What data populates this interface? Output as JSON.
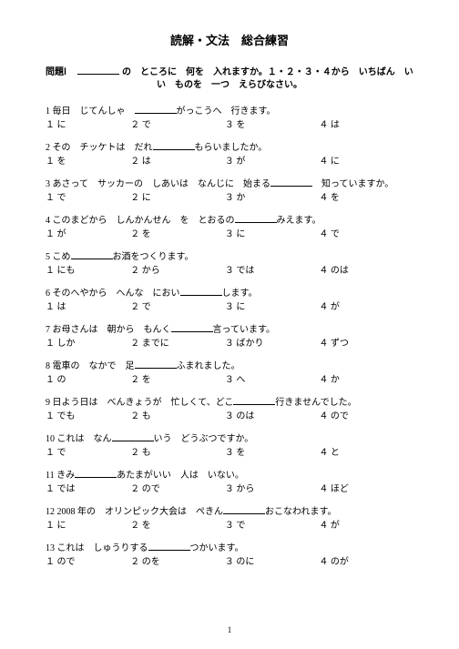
{
  "title": "読解・文法　総合練習",
  "instruction": {
    "label": "問題Ⅰ",
    "line1_a": "の　ところに　何を　入れますか。１・２・３・４から　いちばん　い",
    "line2": "い　ものを　一つ　えらびなさい。"
  },
  "questions": [
    {
      "n": "1",
      "pre": "毎日　じてんしゃ　",
      "post": "がっこうへ　行きます。",
      "opts": [
        "１ に",
        "２ で",
        "３ を",
        "４ は"
      ]
    },
    {
      "n": "2",
      "pre": "その　チッケトは　だれ",
      "post": "もらいましたか。",
      "opts": [
        "１ を",
        "２ は",
        "３ が",
        "４ に"
      ]
    },
    {
      "n": "3",
      "pre": "あさって　サッカーの　しあいは　なんじに　始まる",
      "post": "　知っていますか。",
      "opts": [
        "１ で",
        "２ に",
        "３ か",
        "４ を"
      ]
    },
    {
      "n": "4",
      "pre": "このまどから　しんかんせん　を　とおるの",
      "post": "みえます。",
      "opts": [
        "１ が",
        "２ を",
        "３ に",
        "４ で"
      ]
    },
    {
      "n": "5",
      "pre": "こめ",
      "post": "お酒をつくります。",
      "opts": [
        "１ にも",
        "２ から",
        "３ では",
        "４ のは"
      ]
    },
    {
      "n": "6",
      "pre": "そのへやから　へんな　におい",
      "post": "します。",
      "opts": [
        "１ は",
        "２ で",
        "３ に",
        "４ が"
      ]
    },
    {
      "n": "7",
      "pre": "お母さんは　朝から　もんく",
      "post": "言っています。",
      "opts": [
        "１ しか",
        "２ までに",
        "３ ばかり",
        "４ ずつ"
      ]
    },
    {
      "n": "8",
      "pre": "電車の　なかで　足",
      "post": "ふまれました。",
      "opts": [
        "１ の",
        "２ を",
        "３ へ",
        "４ か"
      ]
    },
    {
      "n": "9",
      "pre": "日よう日は　べんきょうが　忙しくて、どこ",
      "post": "行きませんでした。",
      "opts": [
        "１ でも",
        "２ も",
        "３ のは",
        "４ ので"
      ]
    },
    {
      "n": "10",
      "pre": "これは　なん",
      "post": "いう　どうぶつですか。",
      "opts": [
        "１ で",
        "２ も",
        "３ を",
        "４ と"
      ]
    },
    {
      "n": "11",
      "pre": "きみ",
      "post": "あたまがいい　人は　いない。",
      "opts": [
        "１ では",
        "２ ので",
        "３ から",
        "４ ほど"
      ]
    },
    {
      "n": "12",
      "pre": "2008 年の　オリンピック大会は　ぺきん",
      "post": "おこなわれます。",
      "opts": [
        "１ に",
        "２ を",
        "３ で",
        "４ が"
      ]
    },
    {
      "n": "13",
      "pre": "これは　しゅうりする",
      "post": "つかいます。",
      "opts": [
        "１ ので",
        "２ のを",
        "３ のに",
        "４ のが"
      ]
    }
  ],
  "page_number": "1",
  "style": {
    "blank_instr_w": 46,
    "blank_q_w": 46
  }
}
